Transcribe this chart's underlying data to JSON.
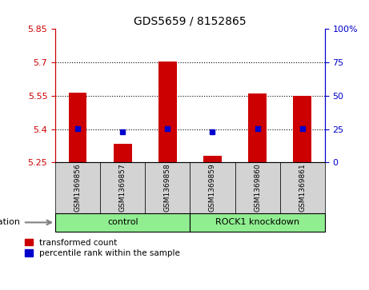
{
  "title": "GDS5659 / 8152865",
  "samples": [
    "GSM1369856",
    "GSM1369857",
    "GSM1369858",
    "GSM1369859",
    "GSM1369860",
    "GSM1369861"
  ],
  "red_values": [
    5.565,
    5.335,
    5.705,
    5.28,
    5.56,
    5.55
  ],
  "blue_values": [
    5.402,
    5.387,
    5.403,
    5.388,
    5.403,
    5.402
  ],
  "ylim": [
    5.25,
    5.85
  ],
  "yticks_left": [
    5.25,
    5.4,
    5.55,
    5.7,
    5.85
  ],
  "yticks_right": [
    0,
    25,
    50,
    75,
    100
  ],
  "hlines": [
    5.4,
    5.55,
    5.7
  ],
  "red_color": "#cc0000",
  "blue_color": "#0000cc",
  "bar_width": 0.4,
  "legend_labels": [
    "transformed count",
    "percentile rank within the sample"
  ],
  "group_defs": [
    {
      "label": "control",
      "start": 0,
      "end": 3,
      "color": "#90ee90"
    },
    {
      "label": "ROCK1 knockdown",
      "start": 3,
      "end": 6,
      "color": "#90ee90"
    }
  ],
  "background_color": "#ffffff",
  "tick_color_left": "#cc0000",
  "tick_color_right": "#0000cc",
  "base_value": 5.25,
  "sample_box_color": "#d3d3d3"
}
